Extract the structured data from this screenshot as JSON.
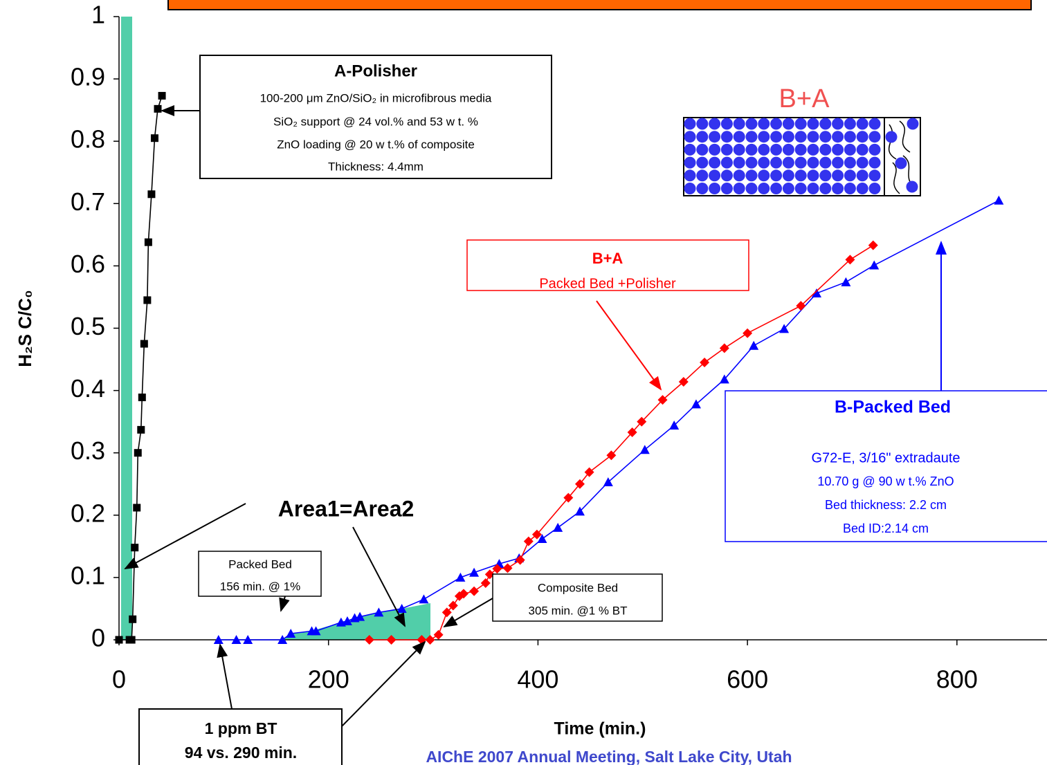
{
  "chart_data": {
    "type": "scatter",
    "y_label": "H₂S C/C₀",
    "x_label": "Time (min.)",
    "footer": "AIChE 2007 Annual Meeting, Salt Lake City, Utah",
    "xlim": [
      0,
      886
    ],
    "ylim": [
      0,
      1
    ],
    "xticks": [
      0,
      200,
      400,
      600,
      800
    ],
    "yticks": [
      0,
      0.1,
      0.2,
      0.3,
      0.4,
      0.5,
      0.6,
      0.7,
      0.8,
      0.9,
      1
    ],
    "grid": false,
    "series": [
      {
        "name": "A-Polisher",
        "color": "#000000",
        "marker": "square",
        "x": [
          0,
          10,
          12,
          13,
          15,
          17,
          18,
          21,
          22,
          24,
          27,
          28,
          31,
          34,
          37,
          41
        ],
        "values": [
          0,
          0,
          0,
          0.033,
          0.148,
          0.212,
          0.3,
          0.337,
          0.389,
          0.475,
          0.545,
          0.638,
          0.715,
          0.805,
          0.852,
          0.873
        ]
      },
      {
        "name": "B-Packed Bed",
        "color": "#0000ff",
        "marker": "triangle",
        "x": [
          95,
          112,
          123,
          156,
          164,
          184,
          188,
          212,
          218,
          225,
          230,
          248,
          270,
          291,
          326,
          339,
          363,
          382,
          404,
          419,
          440,
          467,
          502,
          530,
          551,
          578,
          606,
          635,
          666,
          694,
          721,
          840
        ],
        "values": [
          0,
          0,
          0,
          0,
          0.01,
          0.014,
          0.014,
          0.028,
          0.03,
          0.035,
          0.037,
          0.044,
          0.05,
          0.065,
          0.1,
          0.108,
          0.122,
          0.131,
          0.162,
          0.18,
          0.206,
          0.253,
          0.305,
          0.344,
          0.378,
          0.418,
          0.472,
          0.499,
          0.556,
          0.574,
          0.601,
          0.705
        ]
      },
      {
        "name": "B+A",
        "color": "#ff0000",
        "marker": "diamond",
        "x": [
          239,
          260,
          289,
          297,
          305,
          313,
          319,
          325,
          329,
          339,
          350,
          354,
          361,
          371,
          383,
          391,
          399,
          429,
          440,
          449,
          470,
          490,
          499,
          519,
          539,
          559,
          578,
          600,
          651,
          698,
          720
        ],
        "values": [
          0,
          0,
          0,
          0,
          0.008,
          0.044,
          0.055,
          0.07,
          0.074,
          0.078,
          0.091,
          0.105,
          0.114,
          0.115,
          0.128,
          0.158,
          0.169,
          0.228,
          0.25,
          0.269,
          0.296,
          0.333,
          0.35,
          0.385,
          0.414,
          0.445,
          0.468,
          0.492,
          0.536,
          0.61,
          0.633
        ]
      }
    ],
    "annotations": {
      "polisher": {
        "title": "A-Polisher",
        "lines": [
          "100-200 μm ZnO/SiO₂ in microfibrous media",
          "SiO₂ support @ 24 vol.% and 53 w t. %",
          "ZnO loading @ 20 w t.% of composite",
          "Thickness: 4.4mm"
        ]
      },
      "schematic_label": "B+A",
      "combined": {
        "title": "B+A",
        "lines": [
          "Packed Bed +Polisher"
        ]
      },
      "packed": {
        "title": "B-Packed Bed",
        "lines": [
          "G72-E,  3/16\" extradaute",
          "10.70 g @ 90 w t.% ZnO",
          "Bed thickness: 2.2 cm",
          "Bed ID:2.14 cm"
        ]
      },
      "area": "Area1=Area2",
      "packed_bt": [
        "Packed Bed",
        "156 min. @ 1%"
      ],
      "composite_bt": [
        "Composite Bed",
        "305 min. @1 % BT"
      ],
      "ppm": [
        "1 ppm BT",
        "94 vs. 290 min."
      ]
    }
  }
}
